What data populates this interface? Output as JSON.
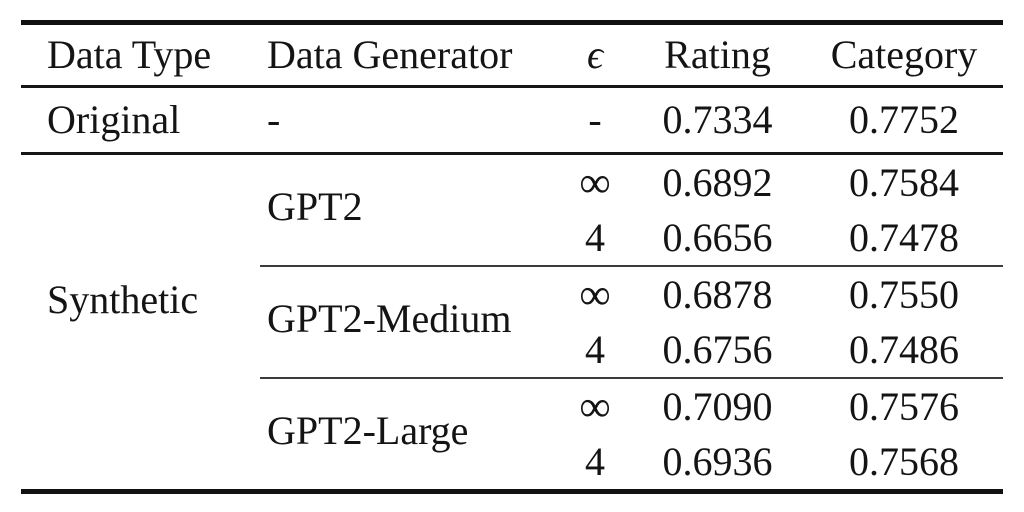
{
  "table": {
    "headers": {
      "data_type": "Data Type",
      "data_generator": "Data Generator",
      "epsilon": "ϵ",
      "rating": "Rating",
      "category": "Category"
    },
    "original": {
      "data_type": "Original",
      "data_generator": "-",
      "epsilon": "-",
      "rating": "0.7334",
      "category": "0.7752"
    },
    "synthetic": {
      "data_type": "Synthetic",
      "groups": [
        {
          "generator": "GPT2",
          "rows": [
            {
              "epsilon": "∞",
              "rating": "0.6892",
              "category": "0.7584"
            },
            {
              "epsilon": "4",
              "rating": "0.6656",
              "category": "0.7478"
            }
          ]
        },
        {
          "generator": "GPT2-Medium",
          "rows": [
            {
              "epsilon": "∞",
              "rating": "0.6878",
              "category": "0.7550"
            },
            {
              "epsilon": "4",
              "rating": "0.6756",
              "category": "0.7486"
            }
          ]
        },
        {
          "generator": "GPT2-Large",
          "rows": [
            {
              "epsilon": "∞",
              "rating": "0.7090",
              "category": "0.7576"
            },
            {
              "epsilon": "4",
              "rating": "0.6936",
              "category": "0.7568"
            }
          ]
        }
      ]
    }
  }
}
